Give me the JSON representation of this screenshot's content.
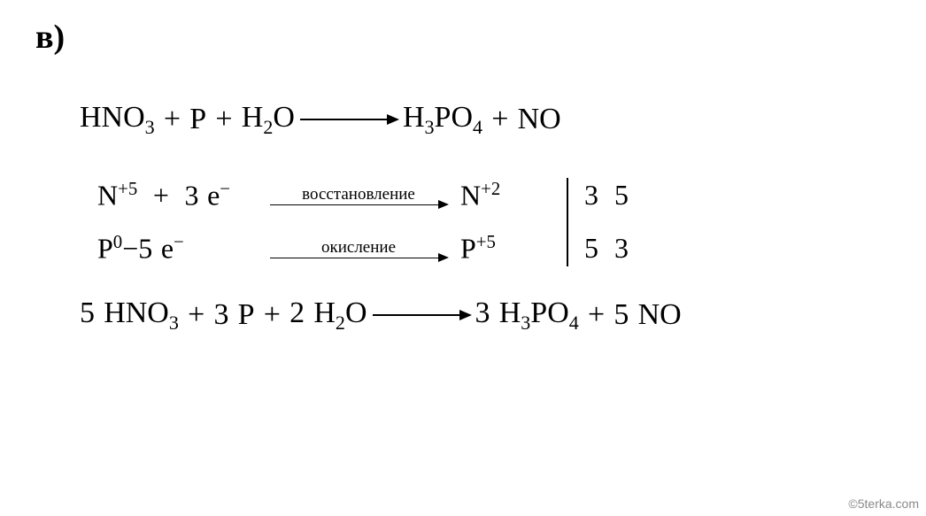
{
  "label": "в)",
  "equation_initial": {
    "lhs": [
      {
        "base": "HNO",
        "sub": "3"
      },
      {
        "plus": true
      },
      {
        "base": "P"
      },
      {
        "plus": true
      },
      {
        "base": "H",
        "sub": "2",
        "tail": "O"
      }
    ],
    "rhs": [
      {
        "base": "H",
        "sub": "3",
        "tail": "PO",
        "sub2": "4"
      },
      {
        "plus": true
      },
      {
        "base": "NO"
      }
    ],
    "arrow_width": 110
  },
  "half_reactions": {
    "row1": {
      "left_species": "N",
      "left_charge": "+5",
      "op": "+",
      "e_count": "3",
      "e_sym": "e",
      "e_sup": "−",
      "label": "восстановление",
      "right_species": "N",
      "right_charge": "+2"
    },
    "row2": {
      "left_species": "P",
      "left_charge": "0",
      "op": "−",
      "e_count": "5",
      "e_sym": "e",
      "e_sup": "−",
      "label": "окисление",
      "right_species": "P",
      "right_charge": "+5"
    },
    "coeffs": {
      "row1": [
        "3",
        "5"
      ],
      "row2": [
        "5",
        "3"
      ]
    }
  },
  "equation_final": {
    "lhs": [
      {
        "coef": "5",
        "base": "HNO",
        "sub": "3"
      },
      {
        "plus": true
      },
      {
        "coef": "3",
        "base": "P"
      },
      {
        "plus": true
      },
      {
        "coef": "2",
        "base": "H",
        "sub": "2",
        "tail": "O"
      }
    ],
    "rhs": [
      {
        "coef": "3",
        "base": "H",
        "sub": "3",
        "tail": "PO",
        "sub2": "4"
      },
      {
        "plus": true
      },
      {
        "coef": "5",
        "base": "NO"
      }
    ],
    "arrow_width": 110
  },
  "watermark": "©5terka.com",
  "colors": {
    "text": "#000000",
    "background": "#ffffff",
    "watermark": "#8a8a8a"
  }
}
